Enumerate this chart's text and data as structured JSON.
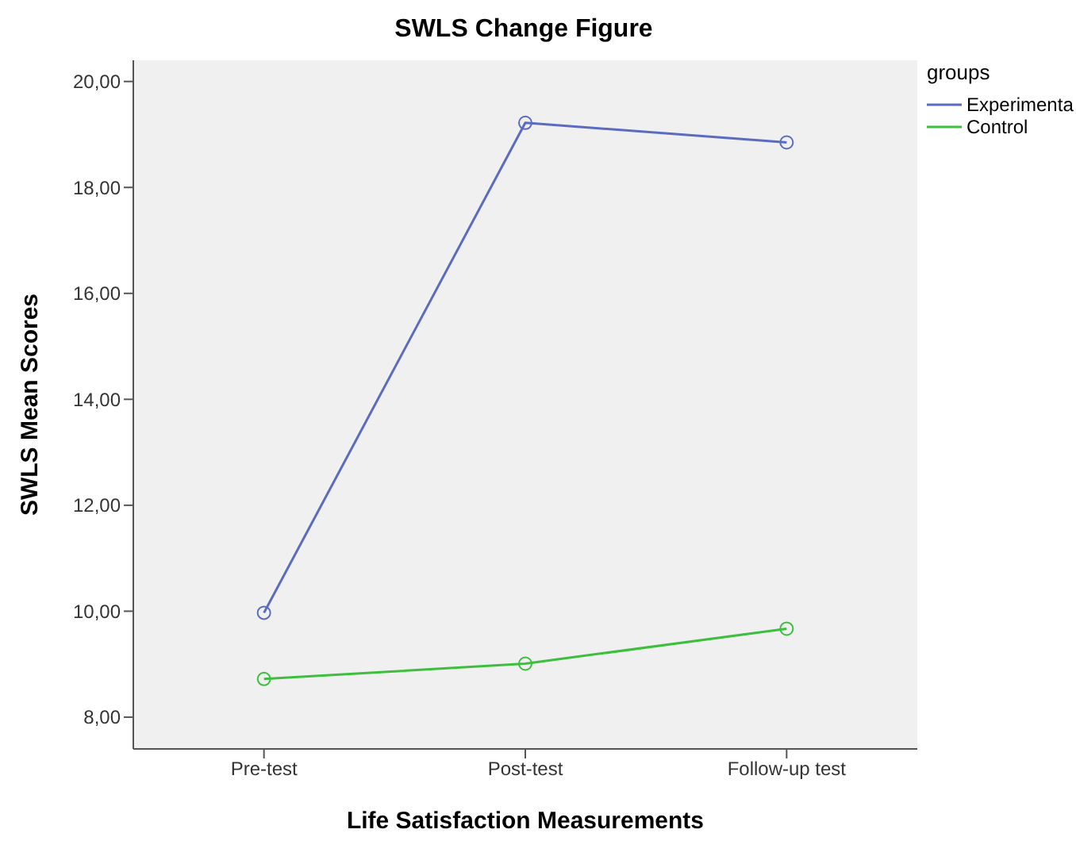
{
  "chart_data": {
    "type": "line",
    "title": "SWLS Change Figure",
    "xlabel": "Life Satisfaction Measurements",
    "ylabel": "SWLS Mean Scores",
    "legend_title": "groups",
    "categories": [
      "Pre-test",
      "Post-test",
      "Follow-up test"
    ],
    "series": [
      {
        "name": "Experimenta",
        "color": "#5b6bbf",
        "values": [
          9.97,
          19.22,
          18.85
        ]
      },
      {
        "name": "Control",
        "color": "#3cbf3c",
        "values": [
          8.72,
          9.01,
          9.67
        ]
      }
    ],
    "ylim": [
      7.4,
      20.4
    ],
    "yticks": [
      {
        "value": 8,
        "label": "8,00"
      },
      {
        "value": 10,
        "label": "10,00"
      },
      {
        "value": 12,
        "label": "12,00"
      },
      {
        "value": 14,
        "label": "14,00"
      },
      {
        "value": 16,
        "label": "16,00"
      },
      {
        "value": 18,
        "label": "18,00"
      },
      {
        "value": 20,
        "label": "20,00"
      }
    ],
    "grid": false,
    "legend": "top right",
    "marker": "circle",
    "line_style": "solid"
  }
}
